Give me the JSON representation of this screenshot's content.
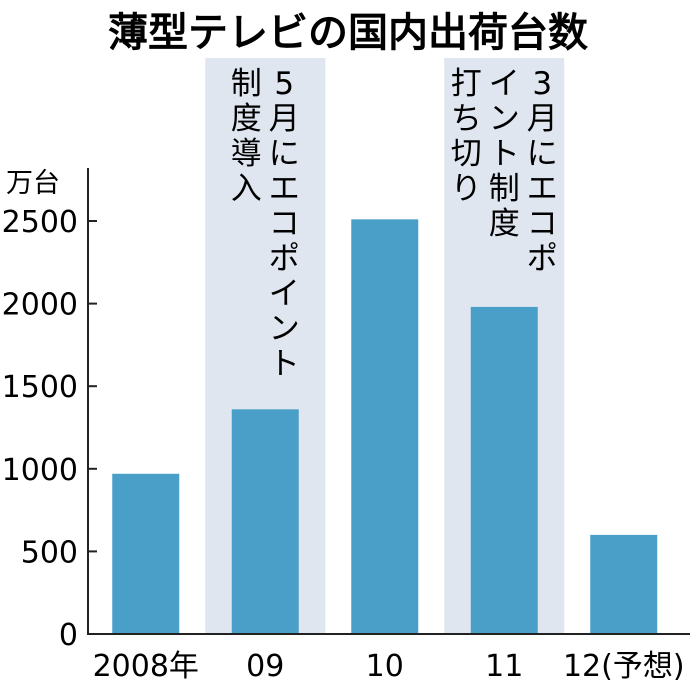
{
  "chart_data": {
    "type": "bar",
    "title": "薄型テレビの国内出荷台数",
    "ylabel": "万台",
    "categories": [
      "2008年",
      "09",
      "10",
      "11",
      "12(予想)"
    ],
    "values": [
      970,
      1360,
      2510,
      1980,
      600
    ],
    "ylim": [
      0,
      2800
    ],
    "yticks": [
      0,
      500,
      1000,
      1500,
      2000,
      2500
    ],
    "grid": false,
    "bar_color": "#4a9fc8",
    "highlight_color": "#dfe6ef",
    "annotations": [
      {
        "category_index": 1,
        "columns": [
          "5月にエコポイント",
          "制度導入"
        ]
      },
      {
        "category_index": 3,
        "columns": [
          "3月にエコポ",
          "イント制度",
          "打ち切り"
        ]
      }
    ]
  }
}
